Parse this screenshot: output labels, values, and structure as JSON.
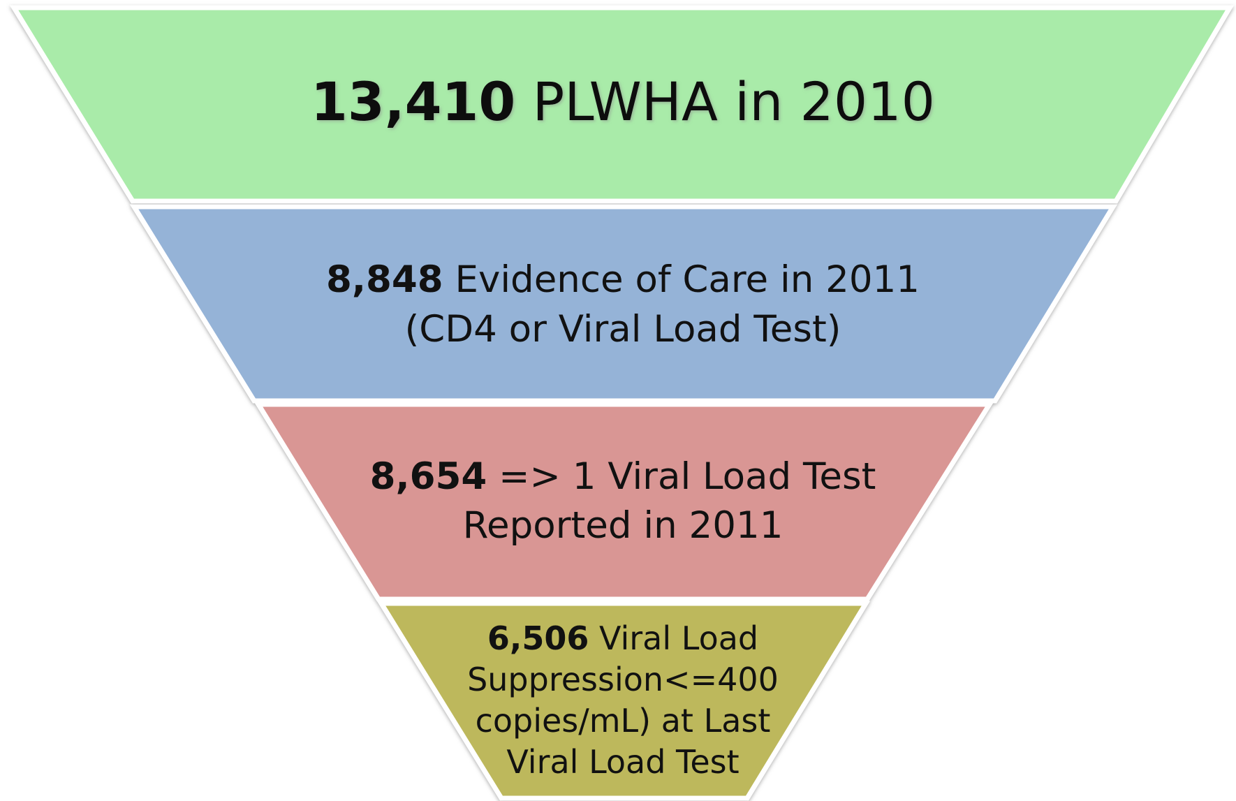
{
  "stages": [
    {
      "number": "13,410",
      "lines": [
        "PLWHA in 2010"
      ]
    },
    {
      "number": "8,848",
      "lines": [
        "Evidence of Care in 2011",
        "(CD4 or Viral Load Test)"
      ]
    },
    {
      "number": "8,654",
      "lines": [
        "=> 1 Viral Load Test",
        "Reported in 2011"
      ]
    },
    {
      "number": "6,506",
      "lines": [
        "Viral Load",
        "Suppression<=400",
        "copies/mL) at Last",
        "Viral Load Test"
      ]
    }
  ]
}
